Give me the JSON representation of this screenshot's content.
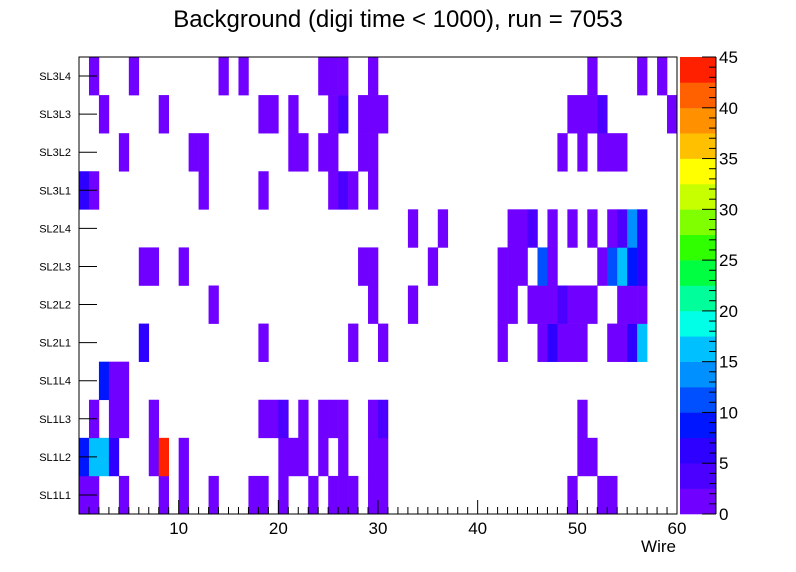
{
  "chart_data": {
    "type": "heatmap",
    "title": "Background (digi time < 1000), run = 7053",
    "xlabel": "Wire",
    "ylabel": "",
    "x_range": [
      0,
      60
    ],
    "x_ticks": [
      10,
      20,
      30,
      40,
      50,
      60
    ],
    "y_categories": [
      "SL1L1",
      "SL1L2",
      "SL1L3",
      "SL1L4",
      "SL2L1",
      "SL2L2",
      "SL2L3",
      "SL2L4",
      "SL3L1",
      "SL3L2",
      "SL3L3",
      "SL3L4"
    ],
    "z_range": [
      0,
      45
    ],
    "z_ticks": [
      0,
      5,
      10,
      15,
      20,
      25,
      30,
      35,
      40,
      45
    ],
    "palette": [
      "#7000ff",
      "#4b00ff",
      "#2e00ff",
      "#0016ff",
      "#0050ff",
      "#0090ff",
      "#00c0ff",
      "#00ffe6",
      "#00ff9b",
      "#00ff40",
      "#30ff00",
      "#80ff00",
      "#c8ff00",
      "#ffff00",
      "#ffc000",
      "#ff9000",
      "#ff6000",
      "#ff2000"
    ],
    "cells": [
      {
        "layer": "SL1L1",
        "wires": [
          1,
          2,
          5,
          9,
          11,
          14,
          18,
          19,
          21,
          24,
          26,
          27,
          28,
          30,
          31,
          50,
          53,
          54
        ],
        "values": [
          1,
          1,
          1,
          1,
          1,
          1,
          1,
          1,
          1,
          1,
          1,
          1,
          1,
          1,
          1,
          1,
          1,
          1
        ]
      },
      {
        "layer": "SL1L2",
        "wires": [
          1,
          2,
          3,
          4,
          8,
          9,
          11,
          21,
          22,
          23,
          25,
          27,
          30,
          31,
          51,
          52
        ],
        "values": [
          9,
          15,
          17,
          5,
          1,
          44,
          1,
          1,
          1,
          1,
          1,
          1,
          1,
          1,
          1,
          1
        ]
      },
      {
        "layer": "SL1L3",
        "wires": [
          2,
          4,
          5,
          8,
          19,
          20,
          21,
          23,
          25,
          26,
          27,
          30,
          31,
          51
        ],
        "values": [
          1,
          1,
          1,
          1,
          1,
          1,
          4,
          1,
          1,
          2,
          1,
          1,
          3,
          1
        ]
      },
      {
        "layer": "SL1L4",
        "wires": [
          3,
          4,
          5
        ],
        "values": [
          8,
          1,
          1
        ]
      },
      {
        "layer": "SL2L1",
        "wires": [
          7,
          19,
          28,
          31,
          43,
          47,
          48,
          49,
          50,
          51,
          54,
          55,
          56,
          57
        ],
        "values": [
          5,
          1,
          1,
          1,
          1,
          1,
          5,
          1,
          1,
          1,
          1,
          2,
          6,
          16
        ]
      },
      {
        "layer": "SL2L2",
        "wires": [
          14,
          30,
          34,
          43,
          44,
          46,
          47,
          48,
          49,
          50,
          51,
          52,
          55,
          56,
          57
        ],
        "values": [
          1,
          1,
          1,
          1,
          1,
          1,
          1,
          2,
          3,
          1,
          1,
          1,
          1,
          1,
          2
        ]
      },
      {
        "layer": "SL2L3",
        "wires": [
          7,
          8,
          11,
          29,
          30,
          36,
          43,
          44,
          45,
          47,
          48,
          53,
          54,
          55,
          56,
          57
        ],
        "values": [
          1,
          1,
          1,
          1,
          1,
          1,
          1,
          1,
          1,
          10,
          1,
          1,
          11,
          16,
          9,
          5
        ]
      },
      {
        "layer": "SL2L4",
        "wires": [
          34,
          37,
          44,
          45,
          46,
          48,
          50,
          52,
          54,
          55,
          56,
          57
        ],
        "values": [
          1,
          1,
          1,
          1,
          3,
          1,
          1,
          1,
          1,
          3,
          13,
          5
        ]
      },
      {
        "layer": "SL3L1",
        "wires": [
          1,
          2,
          13,
          19,
          26,
          27,
          28,
          30
        ],
        "values": [
          6,
          1,
          1,
          1,
          1,
          4,
          1,
          1
        ]
      },
      {
        "layer": "SL3L2",
        "wires": [
          5,
          12,
          13,
          22,
          23,
          25,
          26,
          29,
          30,
          49,
          51,
          53,
          54,
          55
        ],
        "values": [
          1,
          1,
          1,
          1,
          1,
          1,
          1,
          1,
          1,
          1,
          1,
          1,
          1,
          1
        ]
      },
      {
        "layer": "SL3L3",
        "wires": [
          3,
          9,
          19,
          20,
          22,
          26,
          27,
          29,
          30,
          31,
          50,
          51,
          52,
          53,
          60
        ],
        "values": [
          1,
          1,
          1,
          1,
          1,
          1,
          3,
          1,
          1,
          1,
          1,
          1,
          1,
          3,
          1
        ]
      },
      {
        "layer": "SL3L4",
        "wires": [
          2,
          6,
          15,
          17,
          25,
          26,
          27,
          30,
          52,
          57,
          59
        ],
        "values": [
          1,
          1,
          1,
          1,
          1,
          1,
          1,
          1,
          1,
          1,
          1
        ]
      }
    ]
  }
}
